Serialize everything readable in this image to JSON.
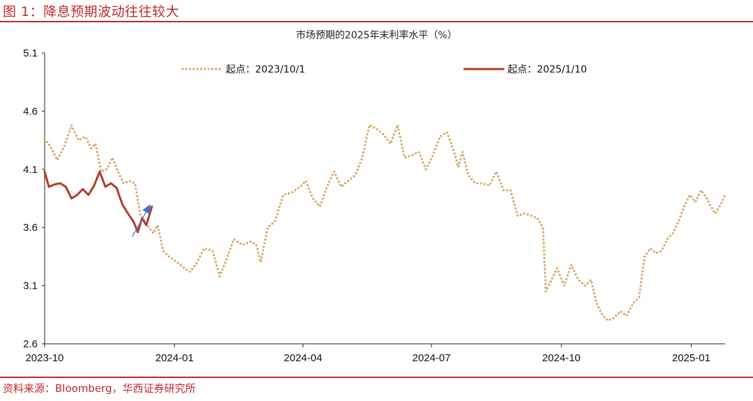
{
  "figure": {
    "title": "图 1：降息预期波动往往较大",
    "source": "资料来源：Bloomberg，华西证券研究所"
  },
  "colors": {
    "accent": "#c0292b",
    "series_2023": "#d4aa6a",
    "series_2025": "#b53a2a",
    "arrow": "#4472c4"
  },
  "chart_data": {
    "type": "line",
    "title": "市场预期的2025年末利率水平（%）",
    "xlabel": "",
    "ylabel": "",
    "ylim": [
      2.6,
      5.1
    ],
    "y_ticks": [
      "2.6",
      "3.1",
      "3.6",
      "4.1",
      "4.6",
      "5.1"
    ],
    "xlim": [
      "2023-10-01",
      "2025-01-25"
    ],
    "x_ticks": [
      {
        "date": "2023-10-01",
        "label": "2023-10"
      },
      {
        "date": "2024-01-01",
        "label": "2024-01"
      },
      {
        "date": "2024-04-01",
        "label": "2024-04"
      },
      {
        "date": "2024-07-01",
        "label": "2024-07"
      },
      {
        "date": "2024-10-01",
        "label": "2024-10"
      },
      {
        "date": "2025-01-01",
        "label": "2025-01"
      }
    ],
    "grid": false,
    "legend_position": "top",
    "series": [
      {
        "name": "起点：2023/10/1",
        "style": "dotted",
        "points": [
          [
            "2023-10-01",
            4.36
          ],
          [
            "2023-10-05",
            4.3
          ],
          [
            "2023-10-10",
            4.18
          ],
          [
            "2023-10-15",
            4.3
          ],
          [
            "2023-10-20",
            4.48
          ],
          [
            "2023-10-25",
            4.35
          ],
          [
            "2023-10-30",
            4.38
          ],
          [
            "2023-11-03",
            4.28
          ],
          [
            "2023-11-06",
            4.32
          ],
          [
            "2023-11-10",
            4.08
          ],
          [
            "2023-11-14",
            4.1
          ],
          [
            "2023-11-18",
            4.2
          ],
          [
            "2023-11-22",
            4.08
          ],
          [
            "2023-11-26",
            3.98
          ],
          [
            "2023-11-30",
            4.0
          ],
          [
            "2023-12-04",
            3.98
          ],
          [
            "2023-12-08",
            3.7
          ],
          [
            "2023-12-11",
            3.65
          ],
          [
            "2023-12-14",
            3.6
          ],
          [
            "2023-12-17",
            3.55
          ],
          [
            "2023-12-20",
            3.62
          ],
          [
            "2023-12-24",
            3.4
          ],
          [
            "2023-12-28",
            3.35
          ],
          [
            "2024-01-03",
            3.3
          ],
          [
            "2024-01-08",
            3.25
          ],
          [
            "2024-01-12",
            3.22
          ],
          [
            "2024-01-16",
            3.28
          ],
          [
            "2024-01-22",
            3.42
          ],
          [
            "2024-01-28",
            3.4
          ],
          [
            "2024-02-02",
            3.18
          ],
          [
            "2024-02-06",
            3.3
          ],
          [
            "2024-02-12",
            3.5
          ],
          [
            "2024-02-18",
            3.45
          ],
          [
            "2024-02-24",
            3.48
          ],
          [
            "2024-02-28",
            3.45
          ],
          [
            "2024-03-02",
            3.3
          ],
          [
            "2024-03-07",
            3.6
          ],
          [
            "2024-03-12",
            3.65
          ],
          [
            "2024-03-18",
            3.88
          ],
          [
            "2024-03-24",
            3.9
          ],
          [
            "2024-03-30",
            3.95
          ],
          [
            "2024-04-03",
            4.0
          ],
          [
            "2024-04-08",
            3.85
          ],
          [
            "2024-04-13",
            3.78
          ],
          [
            "2024-04-18",
            3.95
          ],
          [
            "2024-04-23",
            4.08
          ],
          [
            "2024-04-28",
            3.95
          ],
          [
            "2024-05-03",
            4.0
          ],
          [
            "2024-05-08",
            4.05
          ],
          [
            "2024-05-13",
            4.2
          ],
          [
            "2024-05-18",
            4.48
          ],
          [
            "2024-05-23",
            4.45
          ],
          [
            "2024-05-28",
            4.4
          ],
          [
            "2024-06-02",
            4.32
          ],
          [
            "2024-06-07",
            4.48
          ],
          [
            "2024-06-12",
            4.2
          ],
          [
            "2024-06-17",
            4.22
          ],
          [
            "2024-06-22",
            4.25
          ],
          [
            "2024-06-27",
            4.1
          ],
          [
            "2024-07-02",
            4.22
          ],
          [
            "2024-07-07",
            4.38
          ],
          [
            "2024-07-12",
            4.42
          ],
          [
            "2024-07-17",
            4.25
          ],
          [
            "2024-07-20",
            4.12
          ],
          [
            "2024-07-23",
            4.25
          ],
          [
            "2024-07-27",
            4.05
          ],
          [
            "2024-08-01",
            3.98
          ],
          [
            "2024-08-06",
            3.98
          ],
          [
            "2024-08-11",
            3.96
          ],
          [
            "2024-08-16",
            4.08
          ],
          [
            "2024-08-21",
            3.92
          ],
          [
            "2024-08-26",
            3.92
          ],
          [
            "2024-08-31",
            3.7
          ],
          [
            "2024-09-05",
            3.72
          ],
          [
            "2024-09-10",
            3.7
          ],
          [
            "2024-09-14",
            3.68
          ],
          [
            "2024-09-18",
            3.6
          ],
          [
            "2024-09-20",
            3.05
          ],
          [
            "2024-09-24",
            3.15
          ],
          [
            "2024-09-28",
            3.25
          ],
          [
            "2024-10-03",
            3.1
          ],
          [
            "2024-10-08",
            3.28
          ],
          [
            "2024-10-13",
            3.15
          ],
          [
            "2024-10-18",
            3.1
          ],
          [
            "2024-10-22",
            3.15
          ],
          [
            "2024-10-26",
            2.95
          ],
          [
            "2024-10-30",
            2.85
          ],
          [
            "2024-11-03",
            2.8
          ],
          [
            "2024-11-07",
            2.82
          ],
          [
            "2024-11-12",
            2.88
          ],
          [
            "2024-11-16",
            2.84
          ],
          [
            "2024-11-21",
            2.95
          ],
          [
            "2024-11-25",
            3.0
          ],
          [
            "2024-11-29",
            3.35
          ],
          [
            "2024-12-03",
            3.42
          ],
          [
            "2024-12-07",
            3.38
          ],
          [
            "2024-12-11",
            3.4
          ],
          [
            "2024-12-15",
            3.5
          ],
          [
            "2024-12-19",
            3.55
          ],
          [
            "2024-12-23",
            3.65
          ],
          [
            "2024-12-27",
            3.78
          ],
          [
            "2024-12-31",
            3.88
          ],
          [
            "2025-01-04",
            3.82
          ],
          [
            "2025-01-08",
            3.92
          ],
          [
            "2025-01-12",
            3.85
          ],
          [
            "2025-01-15",
            3.78
          ],
          [
            "2025-01-18",
            3.72
          ],
          [
            "2025-01-22",
            3.8
          ],
          [
            "2025-01-25",
            3.88
          ]
        ]
      },
      {
        "name": "起点：2025/1/10",
        "style": "solid",
        "points": [
          [
            "2023-10-01",
            4.08
          ],
          [
            "2023-10-04",
            3.95
          ],
          [
            "2023-10-08",
            3.97
          ],
          [
            "2023-10-12",
            3.98
          ],
          [
            "2023-10-16",
            3.95
          ],
          [
            "2023-10-20",
            3.85
          ],
          [
            "2023-10-24",
            3.88
          ],
          [
            "2023-10-28",
            3.93
          ],
          [
            "2023-11-01",
            3.88
          ],
          [
            "2023-11-05",
            3.96
          ],
          [
            "2023-11-09",
            4.08
          ],
          [
            "2023-11-13",
            3.95
          ],
          [
            "2023-11-17",
            3.98
          ],
          [
            "2023-11-21",
            3.94
          ],
          [
            "2023-11-25",
            3.8
          ],
          [
            "2023-11-29",
            3.72
          ],
          [
            "2023-12-03",
            3.65
          ],
          [
            "2023-12-06",
            3.56
          ],
          [
            "2023-12-09",
            3.68
          ],
          [
            "2023-12-12",
            3.62
          ],
          [
            "2023-12-16",
            3.78
          ]
        ]
      }
    ],
    "annotation": {
      "type": "arrow",
      "from": [
        "2023-12-02",
        3.52
      ],
      "to": [
        "2023-12-15",
        3.8
      ]
    }
  }
}
